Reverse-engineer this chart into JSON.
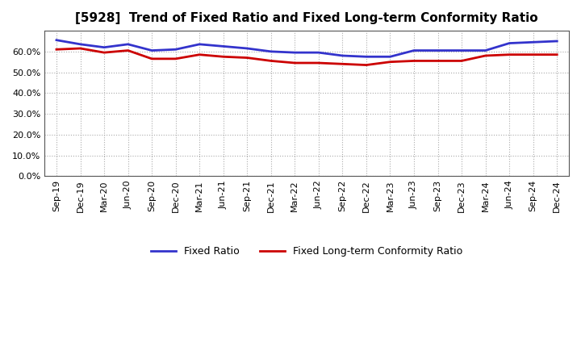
{
  "title": "[5928]  Trend of Fixed Ratio and Fixed Long-term Conformity Ratio",
  "x_labels": [
    "Sep-19",
    "Dec-19",
    "Mar-20",
    "Jun-20",
    "Sep-20",
    "Dec-20",
    "Mar-21",
    "Jun-21",
    "Sep-21",
    "Dec-21",
    "Mar-22",
    "Jun-22",
    "Sep-22",
    "Dec-22",
    "Mar-23",
    "Jun-23",
    "Sep-23",
    "Dec-23",
    "Mar-24",
    "Jun-24",
    "Sep-24",
    "Dec-24"
  ],
  "fixed_ratio": [
    65.5,
    63.5,
    62.0,
    63.5,
    60.5,
    61.0,
    63.5,
    62.5,
    61.5,
    60.0,
    59.5,
    59.5,
    58.0,
    57.5,
    57.5,
    60.5,
    60.5,
    60.5,
    60.5,
    64.0,
    64.5,
    65.0
  ],
  "fixed_lt_ratio": [
    61.0,
    61.5,
    59.5,
    60.5,
    56.5,
    56.5,
    58.5,
    57.5,
    57.0,
    55.5,
    54.5,
    54.5,
    54.0,
    53.5,
    55.0,
    55.5,
    55.5,
    55.5,
    58.0,
    58.5,
    58.5,
    58.5
  ],
  "fixed_ratio_color": "#3333cc",
  "fixed_lt_ratio_color": "#cc0000",
  "background_color": "#ffffff",
  "grid_color": "#aaaaaa",
  "ylim": [
    0,
    70
  ],
  "yticks": [
    0,
    10,
    20,
    30,
    40,
    50,
    60
  ],
  "legend_fixed_ratio": "Fixed Ratio",
  "legend_fixed_lt_ratio": "Fixed Long-term Conformity Ratio"
}
